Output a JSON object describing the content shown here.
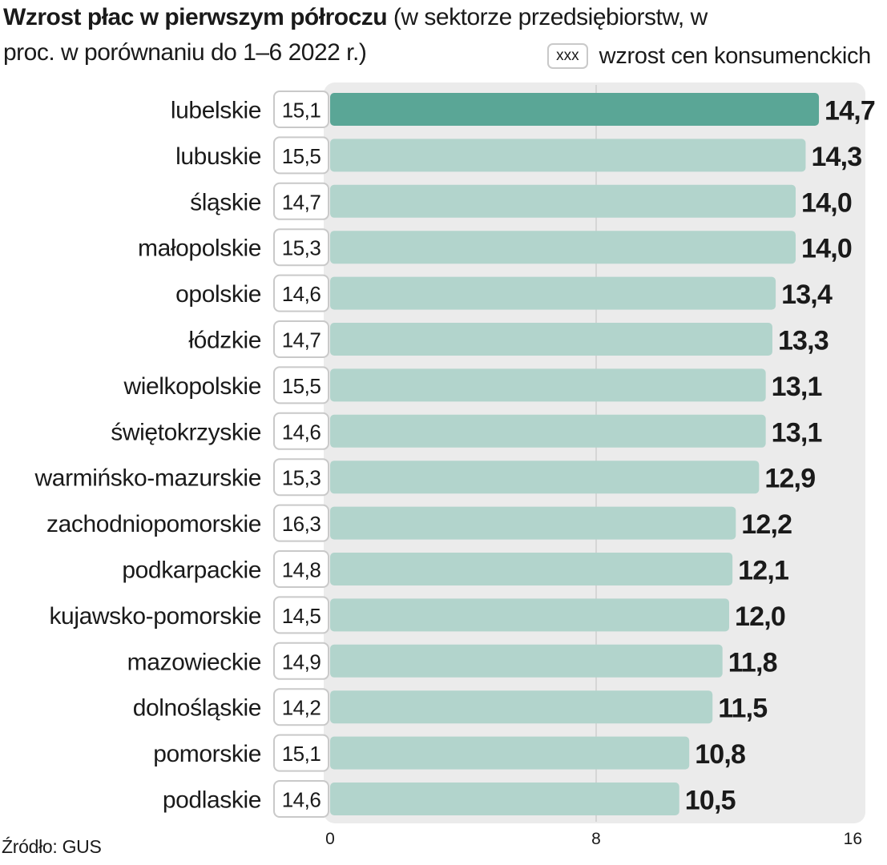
{
  "title": {
    "bold": "Wzrost płac w pierwszym półroczu",
    "rest": " (w sektorze przedsiębiorstw, w proc. w porównaniu do 1–6 2022 r.)"
  },
  "legend": {
    "box_label": "xxx",
    "text": "wzrost cen konsumenckich"
  },
  "source": "Źródło: GUS",
  "colors": {
    "highlight_bar": "#5aa696",
    "bar": "#b2d4cc",
    "panel": "#ebebeb",
    "box_border": "#c9c9c9"
  },
  "chart_data": {
    "type": "bar",
    "orientation": "horizontal",
    "categories": [
      "lubelskie",
      "lubuskie",
      "śląskie",
      "małopolskie",
      "opolskie",
      "łódzkie",
      "wielkopolskie",
      "świętokrzyskie",
      "warmińsko-mazurskie",
      "zachodniopomorskie",
      "podkarpackie",
      "kujawsko-pomorskie",
      "mazowieckie",
      "dolnośląskie",
      "pomorskie",
      "podlaskie"
    ],
    "values": [
      14.7,
      14.3,
      14.0,
      14.0,
      13.4,
      13.3,
      13.1,
      13.1,
      12.9,
      12.2,
      12.1,
      12.0,
      11.8,
      11.5,
      10.8,
      10.5
    ],
    "value_labels": [
      "14,7",
      "14,3",
      "14,0",
      "14,0",
      "13,4",
      "13,3",
      "13,1",
      "13,1",
      "12,9",
      "12,2",
      "12,1",
      "12,0",
      "11,8",
      "11,5",
      "10,8",
      "10,5"
    ],
    "price_growth": [
      15.1,
      15.5,
      14.7,
      15.3,
      14.6,
      14.7,
      15.5,
      14.6,
      15.3,
      16.3,
      14.8,
      14.5,
      14.9,
      14.2,
      15.1,
      14.6
    ],
    "price_growth_labels": [
      "15,1",
      "15,5",
      "14,7",
      "15,3",
      "14,6",
      "14,7",
      "15,5",
      "14,6",
      "15,3",
      "16,3",
      "14,8",
      "14,5",
      "14,9",
      "14,2",
      "15,1",
      "14,6"
    ],
    "xlim": [
      0,
      16
    ],
    "xticks": [
      "0",
      "8",
      "16"
    ],
    "highlight_index": 0
  }
}
